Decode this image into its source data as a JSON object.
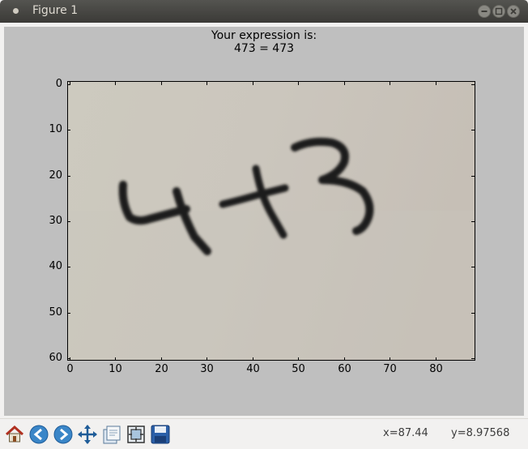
{
  "window": {
    "title": "Figure 1"
  },
  "figure": {
    "title_line1": "Your expression is:",
    "title_line2": "473 = 473",
    "x_ticks": [
      "0",
      "10",
      "20",
      "30",
      "40",
      "50",
      "60",
      "70",
      "80"
    ],
    "y_ticks": [
      "0",
      "10",
      "20",
      "30",
      "40",
      "50",
      "60"
    ]
  },
  "chart_data": {
    "type": "heatmap",
    "title": "Your expression is:\n473 = 473",
    "xlim": [
      -0.5,
      88.5
    ],
    "ylim": [
      60.5,
      -0.5
    ],
    "x_ticks": [
      0,
      10,
      20,
      30,
      40,
      50,
      60,
      70,
      80
    ],
    "y_ticks": [
      0,
      10,
      20,
      30,
      40,
      50,
      60
    ],
    "grid": false
  },
  "status": {
    "x": "x=87.44",
    "y": "y=8.97568"
  },
  "toolbar": {
    "home": "home-icon",
    "back": "back-arrow-icon",
    "forward": "forward-arrow-icon",
    "pan": "pan-icon",
    "subplots": "subplots-icon",
    "zoom": "zoom-to-rect-icon",
    "save": "save-icon"
  },
  "colors": {
    "figure_bg": "#bfbfbf",
    "paper": "#cbc5bd",
    "ink": "#1c1a18"
  }
}
